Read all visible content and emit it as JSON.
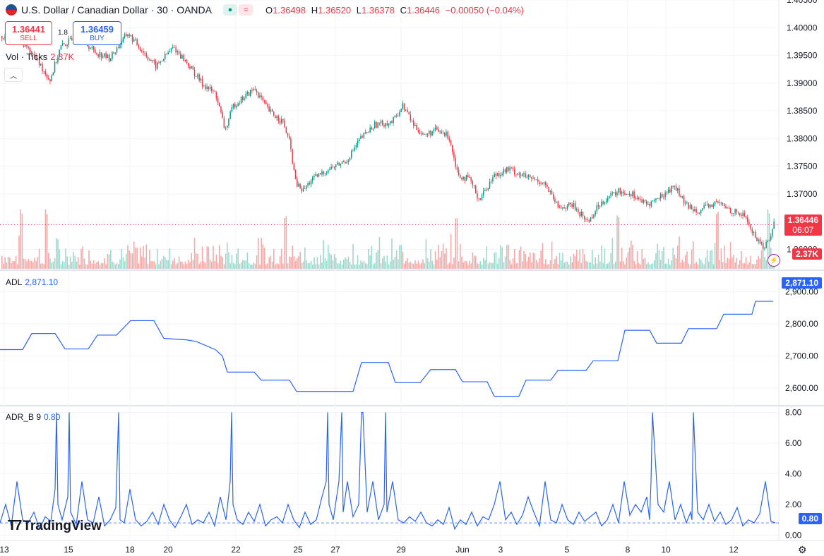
{
  "header": {
    "title": "U.S. Dollar / Canadian Dollar · 30 · OANDA",
    "ohlc": {
      "o_label": "O",
      "o": "1.36498",
      "h_label": "H",
      "h": "1.36520",
      "l_label": "L",
      "l": "1.36378",
      "c_label": "C",
      "c": "1.36446",
      "change": "−0.00050 (−0.04%)"
    }
  },
  "trade": {
    "sell_price": "1.36441",
    "sell_label": "SELL",
    "spread": "1.8",
    "buy_price": "1.36459",
    "buy_label": "BUY"
  },
  "volume": {
    "label": "Vol · Ticks",
    "value": "2.37K"
  },
  "branding": {
    "logo_text": "TradingView"
  },
  "colors": {
    "up": "#089981",
    "down": "#f23645",
    "line": "#2962ff",
    "vol_up": "#9fd8cd",
    "vol_down": "#f7a9a7",
    "grid": "#f0f3fa"
  },
  "chart_data": [
    {
      "type": "candlestick",
      "symbol": "USDCAD",
      "interval": "30",
      "ylim": [
        1.3565,
        1.405
      ],
      "y_ticks": [
        "1.40500",
        "1.40000",
        "1.39500",
        "1.39000",
        "1.38500",
        "1.38000",
        "1.37500",
        "1.37000",
        "1.36000"
      ],
      "last_price": "1.36446",
      "countdown": "06:07",
      "volume_last": "2.37K",
      "x_ticks": [
        "13",
        "15",
        "18",
        "20",
        "22",
        "25",
        "27",
        "29",
        "Jun",
        "3",
        "5",
        "8",
        "10",
        "12"
      ],
      "path_approx": [
        [
          0,
          1.3985
        ],
        [
          30,
          1.3975
        ],
        [
          50,
          1.3945
        ],
        [
          70,
          1.3905
        ],
        [
          85,
          1.3965
        ],
        [
          110,
          1.3985
        ],
        [
          135,
          1.3955
        ],
        [
          155,
          1.3945
        ],
        [
          180,
          1.399
        ],
        [
          200,
          1.396
        ],
        [
          220,
          1.393
        ],
        [
          245,
          1.3965
        ],
        [
          265,
          1.3935
        ],
        [
          285,
          1.39
        ],
        [
          305,
          1.388
        ],
        [
          318,
          1.3815
        ],
        [
          330,
          1.386
        ],
        [
          350,
          1.388
        ],
        [
          360,
          1.389
        ],
        [
          380,
          1.385
        ],
        [
          400,
          1.383
        ],
        [
          410,
          1.379
        ],
        [
          418,
          1.372
        ],
        [
          428,
          1.3705
        ],
        [
          440,
          1.3725
        ],
        [
          465,
          1.3745
        ],
        [
          490,
          1.376
        ],
        [
          510,
          1.38
        ],
        [
          530,
          1.3825
        ],
        [
          555,
          1.383
        ],
        [
          570,
          1.386
        ],
        [
          585,
          1.3825
        ],
        [
          600,
          1.3805
        ],
        [
          615,
          1.3815
        ],
        [
          635,
          1.3805
        ],
        [
          648,
          1.3735
        ],
        [
          665,
          1.3725
        ],
        [
          678,
          1.369
        ],
        [
          700,
          1.3735
        ],
        [
          720,
          1.3745
        ],
        [
          745,
          1.373
        ],
        [
          770,
          1.372
        ],
        [
          790,
          1.3675
        ],
        [
          810,
          1.368
        ],
        [
          832,
          1.365
        ],
        [
          850,
          1.3685
        ],
        [
          875,
          1.3705
        ],
        [
          895,
          1.37
        ],
        [
          915,
          1.368
        ],
        [
          935,
          1.3695
        ],
        [
          955,
          1.3715
        ],
        [
          970,
          1.368
        ],
        [
          990,
          1.367
        ],
        [
          1015,
          1.3685
        ],
        [
          1035,
          1.367
        ],
        [
          1055,
          1.366
        ],
        [
          1065,
          1.363
        ],
        [
          1080,
          1.3605
        ],
        [
          1088,
          1.3615
        ],
        [
          1096,
          1.365
        ]
      ]
    },
    {
      "type": "line",
      "name": "ADL",
      "value": "2,871.10",
      "ylim": [
        2550,
        2960
      ],
      "y_ticks": [
        "2,900.00",
        "2,800.00",
        "2,700.00",
        "2,600.00"
      ],
      "x": [
        0,
        32,
        45,
        78,
        92,
        125,
        138,
        165,
        185,
        218,
        232,
        265,
        278,
        305,
        315,
        322,
        360,
        370,
        410,
        420,
        500,
        512,
        550,
        560,
        595,
        610,
        645,
        655,
        690,
        700,
        735,
        745,
        780,
        790,
        830,
        840,
        875,
        885,
        920,
        930,
        965,
        975,
        1015,
        1025,
        1065,
        1070,
        1095
      ],
      "y": [
        2720,
        2720,
        2770,
        2770,
        2722,
        2722,
        2765,
        2765,
        2810,
        2810,
        2755,
        2750,
        2745,
        2720,
        2700,
        2650,
        2650,
        2625,
        2625,
        2590,
        2590,
        2680,
        2680,
        2617,
        2617,
        2658,
        2658,
        2620,
        2620,
        2575,
        2575,
        2625,
        2625,
        2655,
        2655,
        2685,
        2685,
        2780,
        2780,
        2740,
        2740,
        2785,
        2785,
        2830,
        2830,
        2870,
        2870
      ]
    },
    {
      "type": "line",
      "name": "ADR_B 9",
      "value": "0.80",
      "ylim": [
        -0.3,
        8.3
      ],
      "y_ticks": [
        "8.00",
        "6.00",
        "4.00",
        "2.00",
        "0.00"
      ],
      "x": [
        0,
        8,
        16,
        24,
        32,
        40,
        48,
        56,
        64,
        72,
        78,
        80,
        82,
        88,
        96,
        98,
        100,
        108,
        116,
        124,
        132,
        140,
        148,
        156,
        164,
        168,
        170,
        176,
        184,
        192,
        200,
        208,
        216,
        224,
        232,
        240,
        248,
        256,
        264,
        272,
        280,
        288,
        296,
        304,
        312,
        320,
        326,
        328,
        330,
        336,
        344,
        352,
        360,
        368,
        376,
        384,
        392,
        400,
        408,
        416,
        424,
        432,
        440,
        448,
        456,
        462,
        464,
        466,
        472,
        480,
        484,
        486,
        492,
        500,
        508,
        512,
        514,
        520,
        528,
        536,
        544,
        546,
        548,
        556,
        564,
        572,
        580,
        588,
        596,
        604,
        612,
        620,
        628,
        636,
        644,
        652,
        660,
        668,
        676,
        684,
        692,
        700,
        708,
        716,
        724,
        732,
        740,
        748,
        756,
        764,
        772,
        780,
        788,
        796,
        804,
        812,
        820,
        828,
        836,
        844,
        852,
        860,
        868,
        876,
        884,
        892,
        900,
        908,
        916,
        920,
        922,
        924,
        932,
        940,
        948,
        956,
        964,
        972,
        978,
        980,
        982,
        988,
        996,
        1004,
        1012,
        1020,
        1028,
        1036,
        1044,
        1052,
        1060,
        1068,
        1076,
        1084,
        1092,
        1098
      ],
      "y": [
        0.8,
        2,
        0.6,
        3.5,
        1,
        0.8,
        1.5,
        0.4,
        1.2,
        0.9,
        3,
        8,
        2,
        1,
        2.5,
        8,
        1.5,
        0.7,
        3.5,
        1,
        0.8,
        2.5,
        0.6,
        1,
        1.8,
        8,
        1,
        0.8,
        3,
        1,
        0.6,
        0.9,
        1.5,
        0.7,
        2,
        1,
        0.5,
        1.2,
        2,
        0.7,
        1,
        0.8,
        1.5,
        0.6,
        2.5,
        1,
        3.5,
        8,
        2,
        1,
        0.7,
        1.5,
        0.9,
        2,
        0.6,
        1,
        1.2,
        0.8,
        2,
        1,
        0.5,
        1.5,
        0.7,
        1,
        2.5,
        3.5,
        8,
        2,
        1,
        3.5,
        8,
        1.5,
        3.5,
        1.2,
        2,
        8,
        8,
        1.5,
        3.5,
        1,
        2,
        8,
        1.5,
        3.5,
        1,
        0.8,
        1.2,
        0.9,
        1.5,
        0.8,
        0.6,
        1,
        0.7,
        1.8,
        0.4,
        1,
        0.7,
        1.5,
        0.6,
        1.2,
        1,
        2,
        3.5,
        1,
        1.5,
        0.7,
        1.3,
        2.5,
        1.5,
        0.6,
        3.5,
        1,
        0.8,
        2,
        1,
        0.7,
        1.5,
        0.9,
        1.2,
        1.5,
        0.6,
        1,
        2,
        0.8,
        3.5,
        1.3,
        2,
        1.5,
        2.5,
        1,
        3.5,
        8,
        2,
        1.5,
        3.5,
        1,
        2,
        0.8,
        1.5,
        1,
        8,
        1.5,
        1,
        2,
        0.9,
        1.5,
        0.7,
        1,
        1.8,
        0.6,
        1,
        0.8,
        1.4,
        3.5,
        0.9,
        0.8
      ]
    }
  ]
}
